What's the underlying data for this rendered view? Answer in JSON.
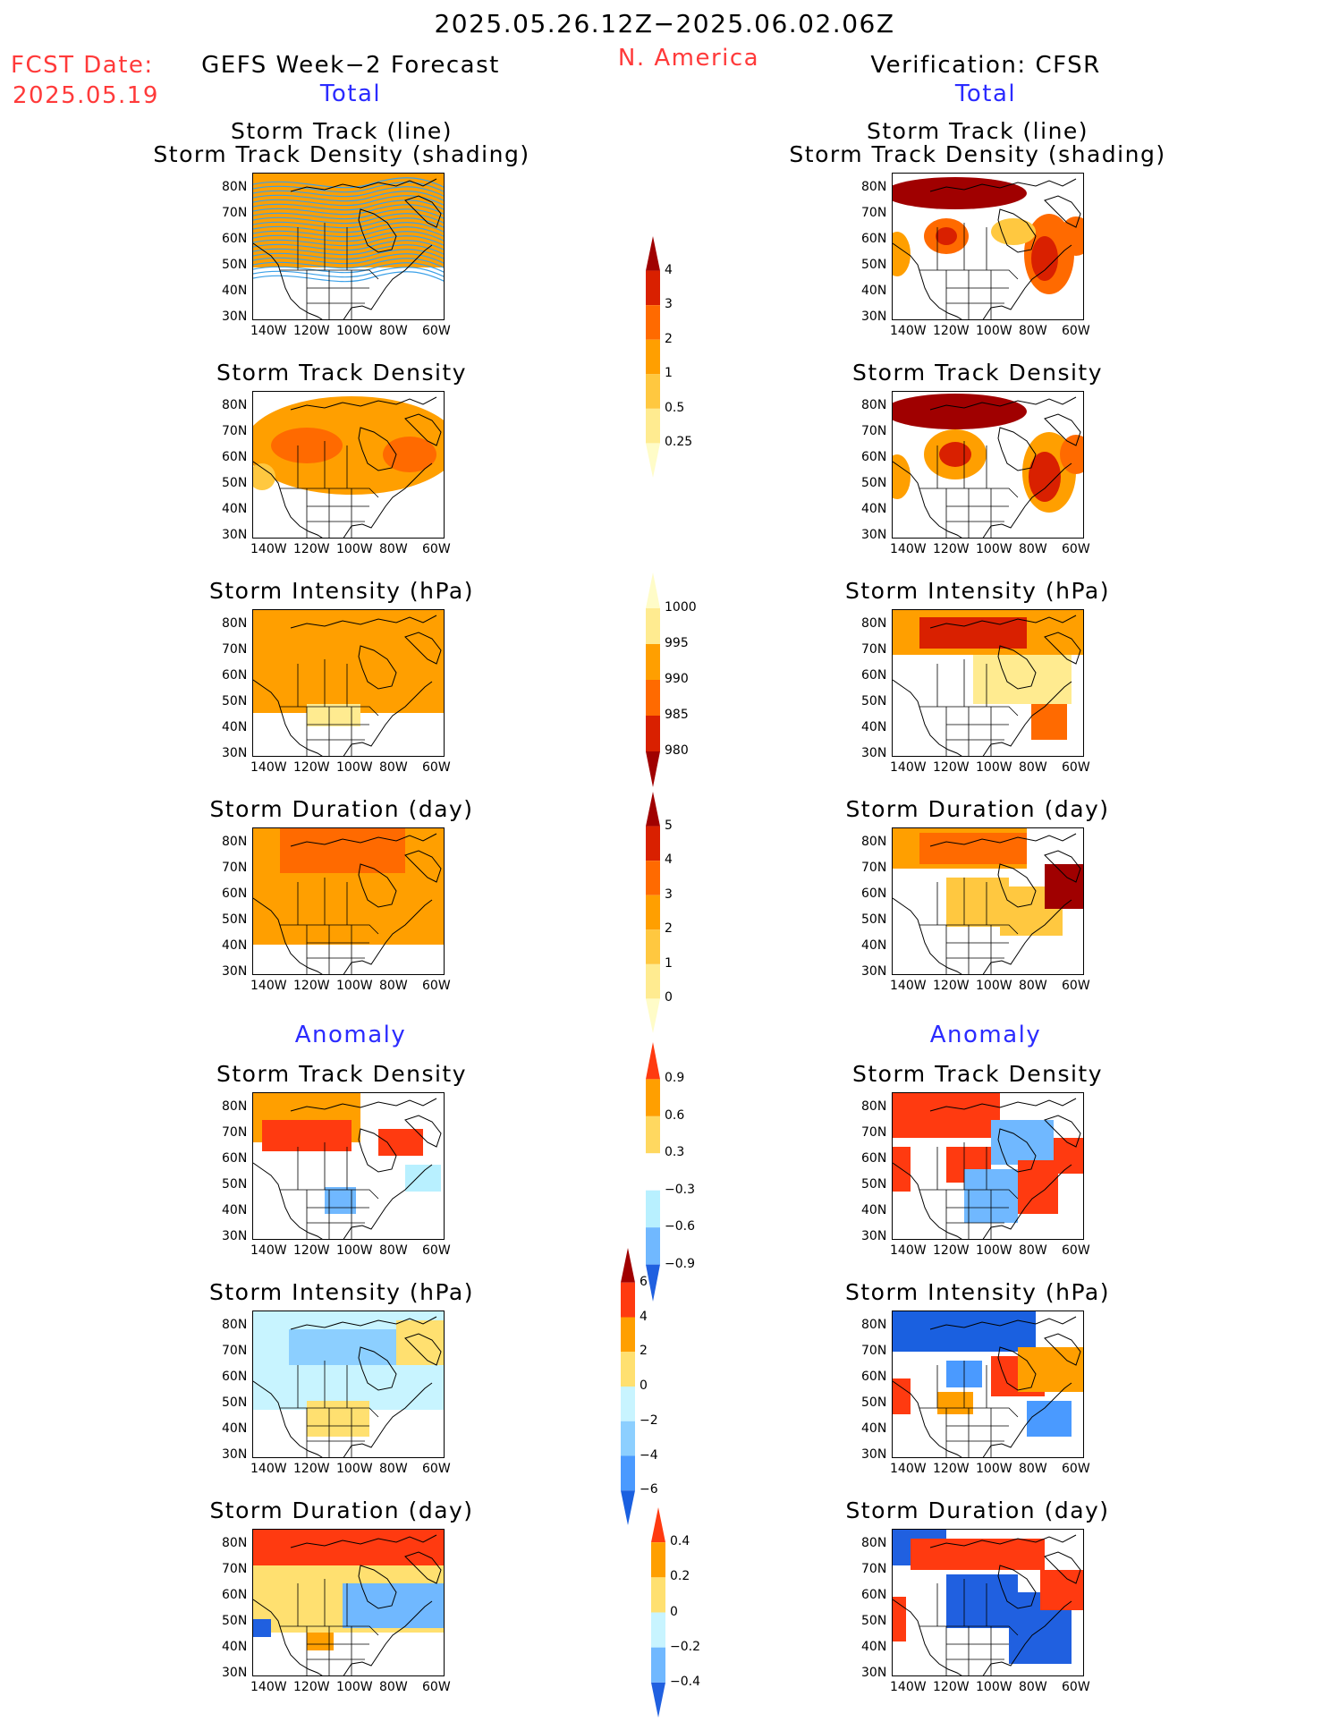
{
  "header": {
    "period": "2025.05.26.12Z−2025.06.02.06Z",
    "region": "N. America",
    "fcst_label": "FCST Date:",
    "fcst_date": "2025.05.19",
    "left_model": "GEFS Week−2 Forecast",
    "right_model": "Verification: CFSR",
    "total_label": "Total",
    "anomaly_label": "Anomaly"
  },
  "axes": {
    "lat_ticks": [
      "80N",
      "70N",
      "60N",
      "50N",
      "40N",
      "30N"
    ],
    "lon_ticks": [
      "140W",
      "120W",
      "100W",
      "80W",
      "60W"
    ]
  },
  "panel_titles": {
    "track_line": "Storm Track (line)",
    "track_density_shading": "Storm Track Density (shading)",
    "track_density": "Storm Track Density",
    "intensity": "Storm Intensity (hPa)",
    "duration": "Storm Duration (day)"
  },
  "colorbars": [
    {
      "name": "density-total",
      "labels": [
        "4",
        "3",
        "2",
        "1",
        "0.5",
        "0.25"
      ],
      "colors": [
        "#a00000",
        "#d92000",
        "#ff6a00",
        "#ff9f00",
        "#ffc840",
        "#ffeb90",
        "#fffcc8"
      ]
    },
    {
      "name": "intensity-total",
      "labels": [
        "1000",
        "995",
        "990",
        "985",
        "980"
      ],
      "colors": [
        "#fffcc8",
        "#ffeb90",
        "#ff9f00",
        "#ff6a00",
        "#d92000",
        "#a00000"
      ]
    },
    {
      "name": "duration-total",
      "labels": [
        "5",
        "4",
        "3",
        "2",
        "1",
        "0"
      ],
      "colors": [
        "#a00000",
        "#d92000",
        "#ff6a00",
        "#ff9f00",
        "#ffc840",
        "#ffeb90",
        "#fffcc8"
      ]
    },
    {
      "name": "density-anomaly",
      "labels": [
        "0.9",
        "0.6",
        "0.3",
        "−0.3",
        "−0.6",
        "−0.9"
      ],
      "colors": [
        "#ff3a10",
        "#ff9f00",
        "#ffd860",
        "#ffffff",
        "#b8f0ff",
        "#70b8ff",
        "#2060e0"
      ]
    },
    {
      "name": "intensity-anomaly",
      "labels": [
        "6",
        "4",
        "2",
        "0",
        "−2",
        "−4",
        "−6"
      ],
      "colors": [
        "#a00000",
        "#ff3a10",
        "#ff9f00",
        "#ffe070",
        "#c8f4ff",
        "#8ccfff",
        "#4a9aff",
        "#1a60e0"
      ]
    },
    {
      "name": "duration-anomaly",
      "labels": [
        "0.4",
        "0.2",
        "0",
        "−0.2",
        "−0.4"
      ],
      "colors": [
        "#ff3a10",
        "#ff9f00",
        "#ffe070",
        "#c8f4ff",
        "#70b8ff",
        "#2060e0"
      ]
    }
  ]
}
